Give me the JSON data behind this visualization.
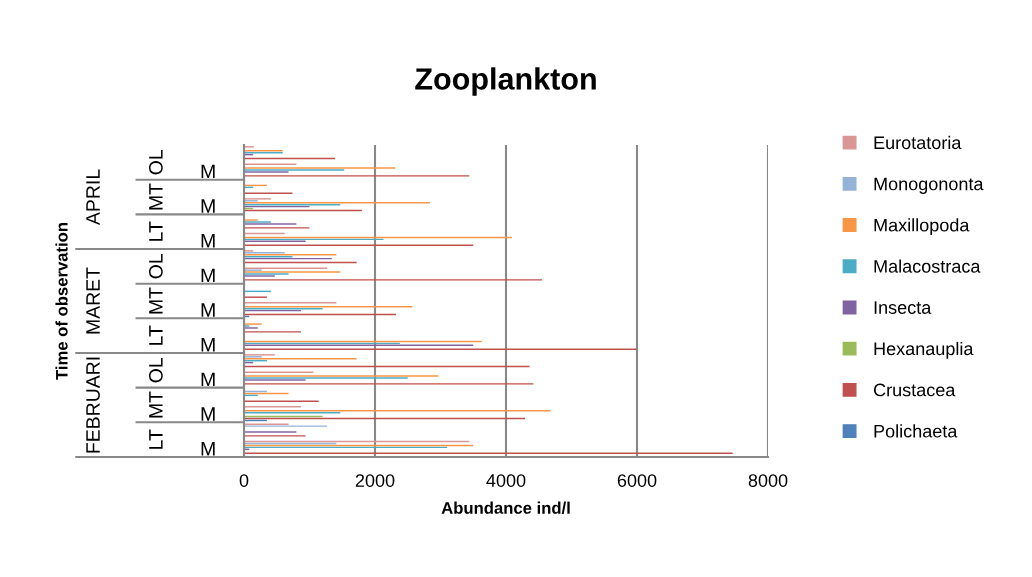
{
  "chart_data": {
    "type": "bar",
    "orientation": "horizontal",
    "title": "Zooplankton",
    "xlabel": "Abundance ind/l",
    "categories": [
      null,
      "M",
      null,
      "M",
      null,
      "M",
      null,
      "M",
      null,
      "M",
      null,
      "M",
      null,
      "M",
      null,
      "M",
      null,
      "M"
    ],
    "annotations": [
      "Time of observation",
      "APRIL",
      "MARET",
      "FEBRUARI",
      "OL",
      "MT",
      "LT",
      "OL",
      "MT",
      "LT",
      "OL",
      "MT",
      "LT"
    ],
    "series": [
      {
        "name": "Polichaeta",
        "color": "#4f81bd",
        "values": [
          0,
          0,
          0,
          0,
          0,
          0,
          0,
          0,
          0,
          80,
          0,
          0,
          0,
          0,
          0,
          350,
          0,
          0
        ]
      },
      {
        "name": "Crustacea",
        "color": "#c0504d",
        "values": [
          1390,
          3440,
          740,
          1800,
          1000,
          3500,
          1720,
          4550,
          350,
          2320,
          870,
          6000,
          4360,
          4420,
          1140,
          4290,
          940,
          7460
        ]
      },
      {
        "name": "Hexanauplia",
        "color": "#9bbb59",
        "values": [
          0,
          0,
          0,
          140,
          0,
          0,
          0,
          0,
          0,
          0,
          0,
          0,
          0,
          0,
          0,
          1200,
          0,
          0
        ]
      },
      {
        "name": "Insecta",
        "color": "#8064a2",
        "values": [
          140,
          680,
          0,
          1000,
          800,
          940,
          1340,
          470,
          0,
          870,
          210,
          3500,
          140,
          940,
          0,
          0,
          800,
          80
        ]
      },
      {
        "name": "Malacostraca",
        "color": "#4bacc6",
        "values": [
          590,
          1530,
          140,
          1470,
          410,
          2130,
          740,
          680,
          410,
          1200,
          80,
          2380,
          350,
          2500,
          210,
          1470,
          0,
          3100
        ]
      },
      {
        "name": "Maxillopoda",
        "color": "#f79646",
        "values": [
          590,
          2310,
          350,
          2840,
          210,
          4090,
          1410,
          1470,
          0,
          2570,
          270,
          3630,
          1720,
          2970,
          680,
          4680,
          0,
          3500
        ]
      },
      {
        "name": "Monogononta",
        "color": "#95b3d7",
        "values": [
          0,
          0,
          0,
          210,
          0,
          0,
          620,
          270,
          0,
          0,
          0,
          0,
          270,
          0,
          350,
          0,
          1270,
          1410
        ]
      },
      {
        "name": "Eurotatoria",
        "color": "#d99694",
        "values": [
          150,
          800,
          0,
          410,
          0,
          620,
          140,
          1270,
          0,
          1410,
          0,
          0,
          470,
          1060,
          0,
          870,
          680,
          3440
        ]
      }
    ],
    "xlim": [
      0,
      8000
    ],
    "xticks": [
      0,
      2000,
      4000,
      6000,
      8000
    ],
    "grid": "x",
    "legend": "right"
  }
}
